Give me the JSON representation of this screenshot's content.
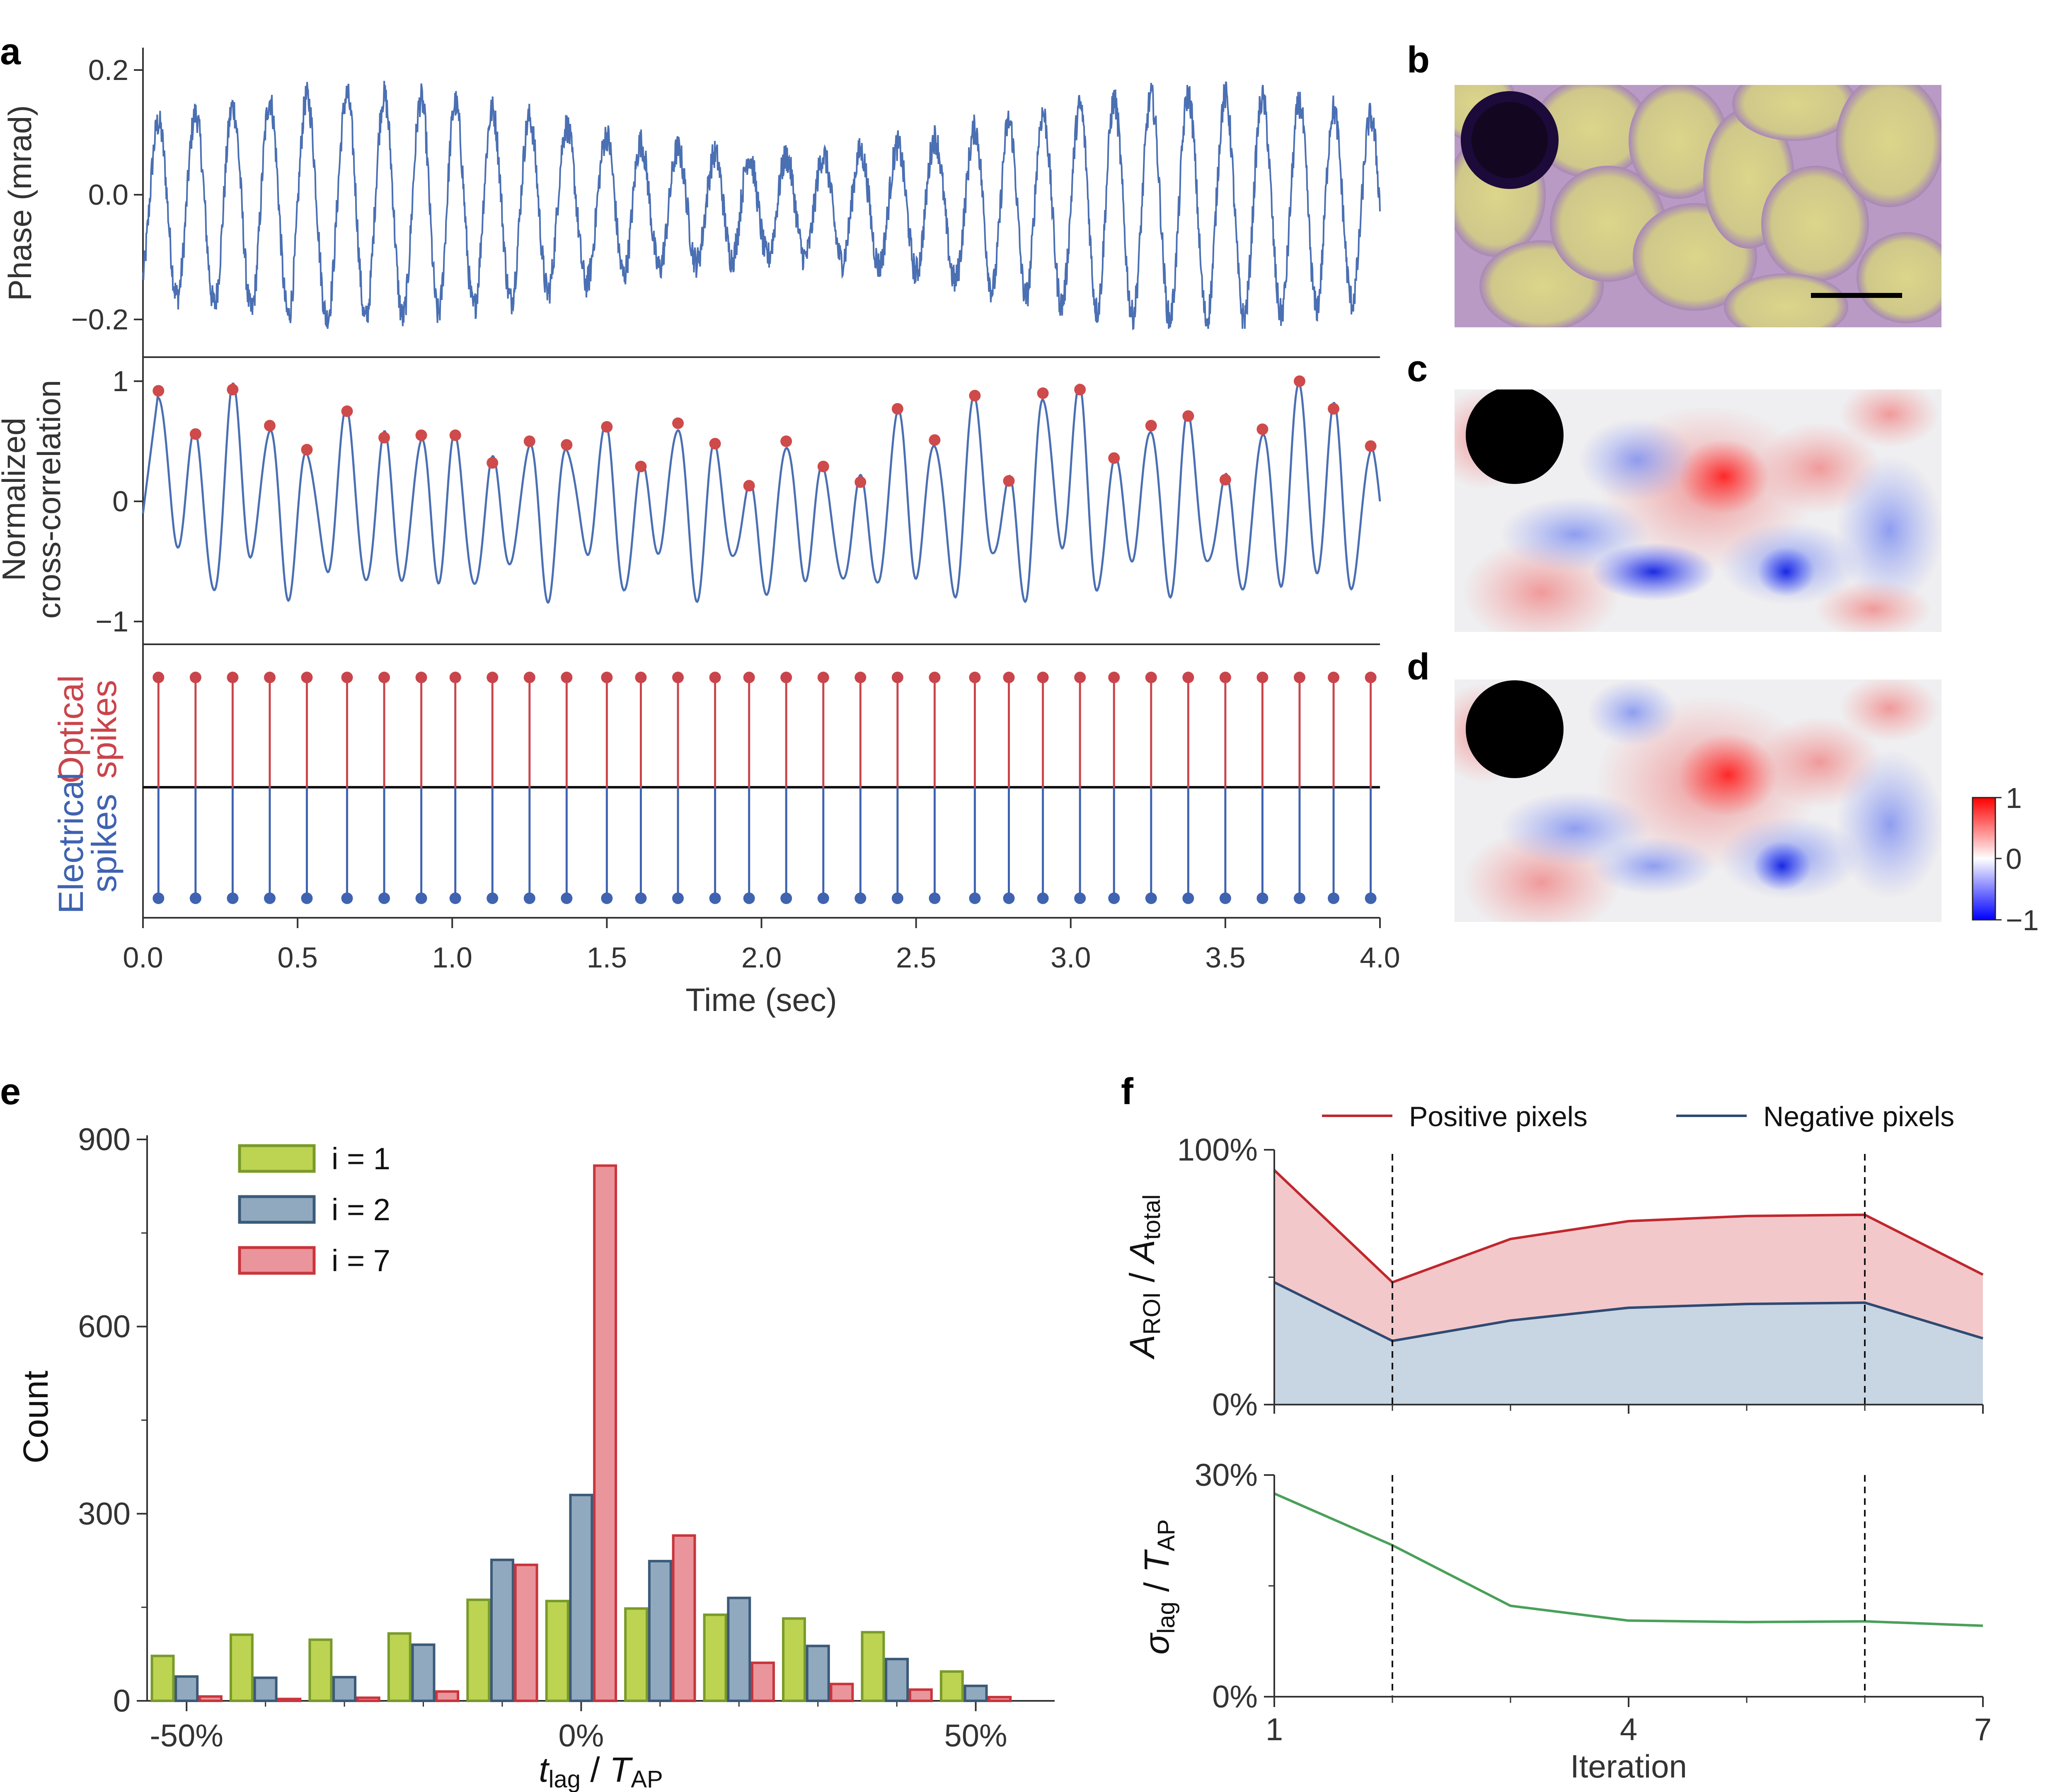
{
  "panel_letters": [
    "a",
    "b",
    "c",
    "d",
    "e",
    "f"
  ],
  "colors": {
    "phase_trace": "#4a6fb3",
    "peak_marker": "#cf4a4a",
    "optical": "#c9454b",
    "electrical": "#3f63b0",
    "positive_line": "#c0272d",
    "positive_fill": "#f3c8cb",
    "negative_line": "#2e4a72",
    "negative_fill": "#c8d5e2",
    "green_line": "#4aa05a",
    "hist_i1": "#bcd452",
    "hist_i2": "#90a9bf",
    "hist_i7": "#e9959b"
  },
  "chart_data": [
    {
      "id": "a-top",
      "type": "line",
      "title": "",
      "ylabel": "Phase (mrad)",
      "xlim": [
        0.0,
        4.0
      ],
      "ylim": [
        -0.22,
        0.22
      ],
      "yticks": [
        "0.2",
        "0.0",
        "−0.2"
      ],
      "series": [
        {
          "name": "phase",
          "description": "noisy oscillating phase trace, ~34 cycles over 4 s, amplitude about ±0.2 mrad"
        }
      ]
    },
    {
      "id": "a-mid",
      "type": "line",
      "ylabel": "Normalized\ncross-correlation",
      "ylabel_lines": [
        "Normalized",
        "cross-correlation"
      ],
      "xlim": [
        0.0,
        4.0
      ],
      "ylim": [
        -1.1,
        1.1
      ],
      "yticks": [
        "1",
        "0",
        "−1"
      ],
      "peaks": {
        "x": [
          0.05,
          0.17,
          0.29,
          0.41,
          0.53,
          0.66,
          0.78,
          0.9,
          1.01,
          1.13,
          1.25,
          1.37,
          1.5,
          1.61,
          1.73,
          1.85,
          1.96,
          2.08,
          2.2,
          2.32,
          2.44,
          2.56,
          2.69,
          2.8,
          2.91,
          3.03,
          3.14,
          3.26,
          3.38,
          3.5,
          3.62,
          3.74,
          3.85,
          3.97
        ],
        "y": [
          0.92,
          0.56,
          0.93,
          0.63,
          0.43,
          0.75,
          0.53,
          0.55,
          0.55,
          0.32,
          0.5,
          0.47,
          0.62,
          0.29,
          0.65,
          0.48,
          0.13,
          0.5,
          0.29,
          0.16,
          0.77,
          0.51,
          0.88,
          0.17,
          0.9,
          0.93,
          0.36,
          0.63,
          0.71,
          0.18,
          0.6,
          1.0,
          0.77,
          0.46
        ]
      }
    },
    {
      "id": "a-bottom",
      "type": "stem",
      "xlabel": "Time (sec)",
      "xlim": [
        0.0,
        4.0
      ],
      "xticks": [
        "0.0",
        "0.5",
        "1.0",
        "1.5",
        "2.0",
        "2.5",
        "3.0",
        "3.5",
        "4.0"
      ],
      "upper_label": [
        "Optical",
        "spikes"
      ],
      "lower_label": [
        "Electrical",
        "spikes"
      ],
      "optical_spikes": [
        0.05,
        0.17,
        0.29,
        0.41,
        0.53,
        0.66,
        0.78,
        0.9,
        1.01,
        1.13,
        1.25,
        1.37,
        1.5,
        1.61,
        1.73,
        1.85,
        1.96,
        2.08,
        2.2,
        2.32,
        2.44,
        2.56,
        2.69,
        2.8,
        2.91,
        3.03,
        3.14,
        3.26,
        3.38,
        3.5,
        3.62,
        3.74,
        3.85,
        3.97
      ],
      "electrical_spikes": [
        0.05,
        0.17,
        0.29,
        0.41,
        0.53,
        0.66,
        0.78,
        0.9,
        1.01,
        1.13,
        1.25,
        1.37,
        1.5,
        1.61,
        1.73,
        1.85,
        1.96,
        2.08,
        2.2,
        2.32,
        2.44,
        2.56,
        2.69,
        2.8,
        2.91,
        3.03,
        3.14,
        3.26,
        3.38,
        3.5,
        3.62,
        3.74,
        3.85,
        3.97
      ]
    },
    {
      "id": "b-d",
      "type": "heatmap",
      "colorbar": {
        "ticks": [
          "1",
          "0",
          "−1"
        ],
        "range": [
          -1,
          1
        ]
      }
    },
    {
      "id": "e",
      "type": "bar",
      "xlabel": "t_lag / T_AP",
      "xlabel_main": "t",
      "xlabel_sub1": "lag",
      "xlabel_mid": " / ",
      "xlabel_main2": "T",
      "xlabel_sub2": "AP",
      "ylabel": "Count",
      "ylim": [
        0,
        900
      ],
      "yticks": [
        "900",
        "600",
        "300",
        "0"
      ],
      "xticks": [
        "-50%",
        "0%",
        "50%"
      ],
      "xlim": [
        -55,
        60
      ],
      "centers": [
        -50,
        -40,
        -30,
        -20,
        -10,
        0,
        10,
        20,
        30,
        40,
        50
      ],
      "series": [
        {
          "name": "i = 1",
          "values": [
            72,
            106,
            98,
            108,
            162,
            160,
            148,
            138,
            132,
            110,
            47
          ]
        },
        {
          "name": "i = 2",
          "values": [
            39,
            37,
            38,
            90,
            226,
            330,
            224,
            165,
            88,
            67,
            24
          ]
        },
        {
          "name": "i = 7",
          "values": [
            7,
            3,
            5,
            15,
            218,
            858,
            265,
            61,
            27,
            18,
            6
          ]
        }
      ]
    },
    {
      "id": "f-top",
      "type": "area",
      "ylabel_main": "A",
      "ylabel_sub1": "ROI",
      "ylabel_mid": " / ",
      "ylabel_main2": "A",
      "ylabel_sub2": "total",
      "ylim": [
        0,
        100
      ],
      "yticks": [
        "100%",
        "0%"
      ],
      "x": [
        1,
        2,
        3,
        4,
        5,
        6,
        7
      ],
      "series": [
        {
          "name": "Positive pixels",
          "values": [
            92,
            48,
            65,
            72,
            74,
            74.5,
            51
          ]
        },
        {
          "name": "Negative pixels",
          "values": [
            48,
            25,
            33,
            38,
            39.5,
            40,
            26
          ]
        }
      ],
      "vlines": [
        2,
        6
      ]
    },
    {
      "id": "f-bottom",
      "type": "line",
      "xlabel": "Iteration",
      "ylabel_main": "σ",
      "ylabel_sub1": "lag",
      "ylabel_mid": " / ",
      "ylabel_main2": "T",
      "ylabel_sub2": "AP",
      "ylim": [
        0,
        30
      ],
      "yticks": [
        "30%",
        "0%"
      ],
      "xticks": [
        "1",
        "4",
        "7"
      ],
      "x": [
        1,
        2,
        3,
        4,
        5,
        6,
        7
      ],
      "values": [
        27.5,
        20.5,
        12.3,
        10.3,
        10.1,
        10.2,
        9.6
      ],
      "vlines": [
        2,
        6
      ]
    }
  ]
}
